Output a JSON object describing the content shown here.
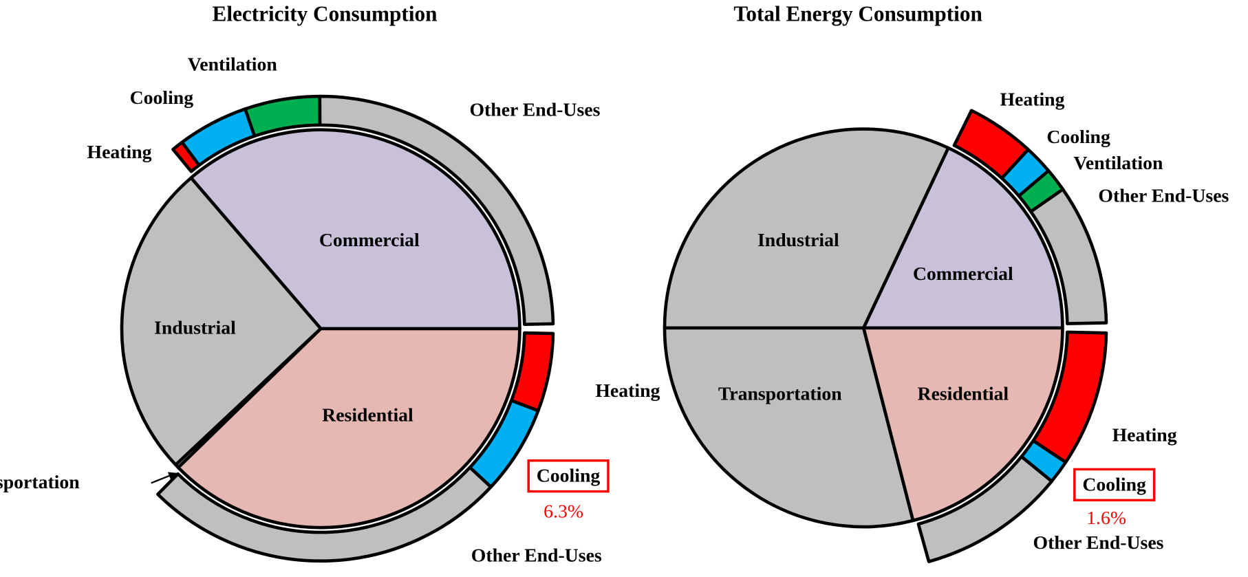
{
  "chart_data": [
    {
      "type": "sunburst",
      "title": "Electricity Consumption",
      "segments": [
        {
          "name": "Commercial",
          "value": 36.3,
          "color": "#c9c0da",
          "children": [
            {
              "name": "Other End-Uses",
              "value": 25.2,
              "color": "#bfbfbf"
            },
            {
              "name": "Ventilation",
              "value": 5.3,
              "color": "#00b050"
            },
            {
              "name": "Cooling",
              "value": 5.0,
              "color": "#00b0f0"
            },
            {
              "name": "Heating",
              "value": 0.8,
              "color": "#ff0000"
            }
          ]
        },
        {
          "name": "Industrial",
          "value": 25.7,
          "color": "#bfbfbf"
        },
        {
          "name": "Transportation",
          "value": 0.3,
          "color": "#bfbfbf"
        },
        {
          "name": "Residential",
          "value": 37.7,
          "color": "#e6b8b4",
          "children": [
            {
              "name": "Other End-Uses",
              "value": 25.9,
              "color": "#bfbfbf"
            },
            {
              "name": "Cooling",
              "value": 6.3,
              "value_label": "6.3%",
              "color": "#00b0f0"
            },
            {
              "name": "Heating",
              "value": 5.5,
              "color": "#ff0000"
            }
          ]
        }
      ]
    },
    {
      "type": "sunburst",
      "title": "Total Energy Consumption",
      "segments": [
        {
          "name": "Commercial",
          "value": 18,
          "color": "#c9c0da",
          "children": [
            {
              "name": "Other End-Uses",
              "value": 9.7,
              "color": "#bfbfbf"
            },
            {
              "name": "Ventilation",
              "value": 1.6,
              "color": "#00b050"
            },
            {
              "name": "Cooling",
              "value": 2.0,
              "color": "#00b0f0"
            },
            {
              "name": "Heating",
              "value": 4.7,
              "color": "#ff0000"
            }
          ]
        },
        {
          "name": "Industrial",
          "value": 32,
          "color": "#bfbfbf"
        },
        {
          "name": "Transportation",
          "value": 29,
          "color": "#bfbfbf"
        },
        {
          "name": "Residential",
          "value": 21,
          "color": "#e6b8b4",
          "children": [
            {
              "name": "Other End-Uses",
              "value": 10.1,
              "color": "#bfbfbf"
            },
            {
              "name": "Cooling",
              "value": 1.6,
              "value_label": "1.6%",
              "color": "#00b0f0"
            },
            {
              "name": "Heating",
              "value": 9.3,
              "color": "#ff0000"
            }
          ]
        }
      ]
    }
  ]
}
